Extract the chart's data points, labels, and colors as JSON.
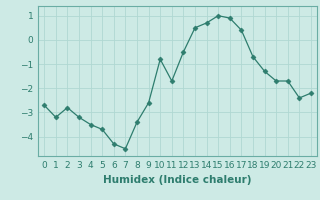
{
  "x": [
    0,
    1,
    2,
    3,
    4,
    5,
    6,
    7,
    8,
    9,
    10,
    11,
    12,
    13,
    14,
    15,
    16,
    17,
    18,
    19,
    20,
    21,
    22,
    23
  ],
  "y": [
    -2.7,
    -3.2,
    -2.8,
    -3.2,
    -3.5,
    -3.7,
    -4.3,
    -4.5,
    -3.4,
    -2.6,
    -0.8,
    -1.7,
    -0.5,
    0.5,
    0.7,
    1.0,
    0.9,
    0.4,
    -0.7,
    -1.3,
    -1.7,
    -1.7,
    -2.4,
    -2.2
  ],
  "line_color": "#2e7d6e",
  "marker": "D",
  "marker_size": 2.5,
  "bg_color": "#cdeae5",
  "grid_color": "#b0d8d2",
  "xlabel": "Humidex (Indice chaleur)",
  "ylim": [
    -4.8,
    1.4
  ],
  "yticks": [
    -4,
    -3,
    -2,
    -1,
    0,
    1
  ],
  "xtick_labels": [
    "0",
    "1",
    "2",
    "3",
    "4",
    "5",
    "6",
    "7",
    "8",
    "9",
    "10",
    "11",
    "12",
    "13",
    "14",
    "15",
    "16",
    "17",
    "18",
    "19",
    "20",
    "21",
    "22",
    "23"
  ],
  "xlabel_fontsize": 7.5,
  "tick_fontsize": 6.5
}
